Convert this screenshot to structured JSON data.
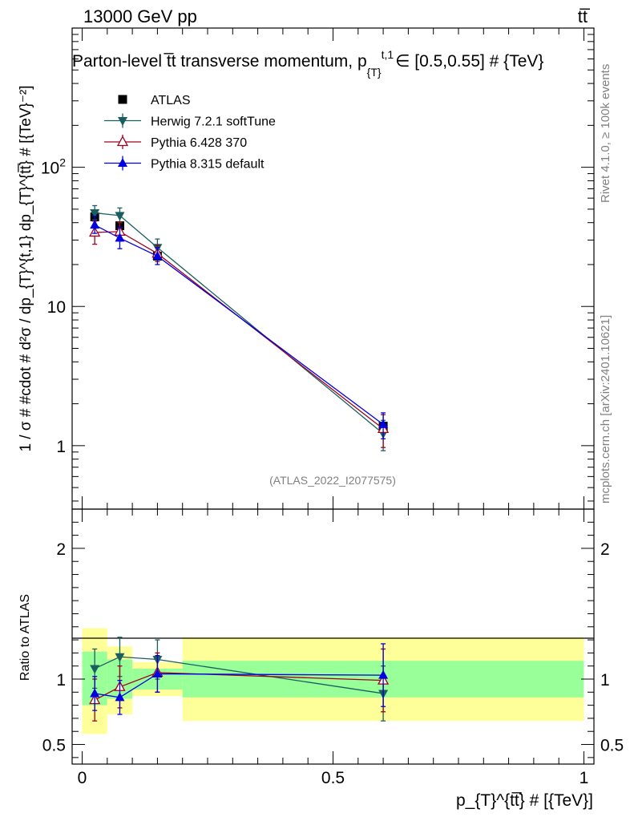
{
  "header": {
    "energy_label": "13000 GeV pp",
    "process_label": "tt̅",
    "plot_title": "Parton-level t̅t transverse momentum, p",
    "title_sub": "{T}",
    "title_sup": "t,1",
    "title_tail": "∈ [0.5,0.55] # {TeV}"
  },
  "side_labels": {
    "rivet": "Rivet 4.1.0, ≥ 100k events",
    "mcplots": "mcplots.cern.ch [arXiv:2401.10621]"
  },
  "watermark": "(ATLAS_2022_I2077575)",
  "chart_data": [
    {
      "type": "scatter",
      "panel": "main",
      "yscale": "log",
      "ylabel": "1 / σ # #cdot # d²σ / dp_{T}^{t,1} dp_{T}^{tt̅} # [{TeV}⁻²]",
      "xlim": [
        -0.02,
        1.02
      ],
      "ylim": [
        0.35,
        1000
      ],
      "y_ticks": [
        {
          "value": 1,
          "label": "1"
        },
        {
          "value": 10,
          "label": "10"
        },
        {
          "value": 100,
          "label": "10²"
        }
      ],
      "legend_position": "top-left",
      "series": [
        {
          "name": "ATLAS",
          "color": "#000000",
          "marker": "square",
          "x": [
            0.025,
            0.075,
            0.15,
            0.6
          ],
          "xerr": [
            0.025,
            0.025,
            0.05,
            0.4
          ],
          "y": [
            44,
            38,
            23,
            1.38
          ],
          "yerr_lo": [
            0,
            0,
            0,
            0
          ],
          "yerr_hi": [
            0,
            0,
            0,
            0
          ]
        },
        {
          "name": "Herwig 7.2.1 softTune",
          "color": "#1a5f5f",
          "marker": "triangle-down",
          "x": [
            0.025,
            0.075,
            0.15,
            0.6
          ],
          "y": [
            47,
            45,
            26.5,
            1.22
          ],
          "yerr_lo": [
            5,
            5,
            3.5,
            0.3
          ],
          "yerr_hi": [
            6,
            6,
            4,
            0.3
          ]
        },
        {
          "name": "Pythia 6.428 370",
          "color": "#a0001e",
          "marker": "triangle-up-open",
          "x": [
            0.025,
            0.075,
            0.15,
            0.6
          ],
          "y": [
            34,
            34.5,
            24,
            1.32
          ],
          "yerr_lo": [
            6,
            5,
            3,
            0.35
          ],
          "yerr_hi": [
            7,
            6,
            3.5,
            0.35
          ]
        },
        {
          "name": "Pythia 8.315 default",
          "color": "#0000e0",
          "marker": "triangle-up",
          "x": [
            0.025,
            0.075,
            0.15,
            0.6
          ],
          "y": [
            38.5,
            31,
            23,
            1.42
          ],
          "yerr_lo": [
            5,
            5,
            3,
            0.3
          ],
          "yerr_hi": [
            6,
            6,
            3.5,
            0.3
          ]
        }
      ]
    },
    {
      "type": "scatter",
      "panel": "ratio",
      "ylabel": "Ratio to ATLAS",
      "xlabel": "p_{T}^{tt̅} # [{TeV}]",
      "xlim": [
        -0.02,
        1.02
      ],
      "ylim": [
        0.35,
        2.3
      ],
      "y_ticks": [
        {
          "value": 0.5,
          "label": "0.5"
        },
        {
          "value": 1,
          "label": "1"
        },
        {
          "value": 2,
          "label": "2"
        }
      ],
      "x_ticks": [
        {
          "value": 0,
          "label": "0"
        },
        {
          "value": 0.5,
          "label": "0.5"
        },
        {
          "value": 1,
          "label": "1"
        }
      ],
      "bands": [
        {
          "x0": 0.0,
          "x1": 0.05,
          "stat_lo": 0.8,
          "stat_hi": 1.21,
          "tot_lo": 0.58,
          "tot_hi": 1.39
        },
        {
          "x0": 0.05,
          "x1": 0.1,
          "stat_lo": 0.85,
          "stat_hi": 1.15,
          "tot_lo": 0.73,
          "tot_hi": 1.25
        },
        {
          "x0": 0.1,
          "x1": 0.2,
          "stat_lo": 0.92,
          "stat_hi": 1.08,
          "tot_lo": 0.87,
          "tot_hi": 1.13
        },
        {
          "x0": 0.2,
          "x1": 1.0,
          "stat_lo": 0.86,
          "stat_hi": 1.14,
          "tot_lo": 0.68,
          "tot_hi": 1.32
        }
      ],
      "series": [
        {
          "name": "Herwig 7.2.1 softTune",
          "color": "#1a5f5f",
          "marker": "triangle-down",
          "x": [
            0.025,
            0.075,
            0.15,
            0.6
          ],
          "y": [
            1.08,
            1.17,
            1.15,
            0.89
          ],
          "yerr_lo": [
            0.15,
            0.15,
            0.15,
            0.21
          ],
          "yerr_hi": [
            0.15,
            0.15,
            0.15,
            0.21
          ]
        },
        {
          "name": "Pythia 6.428 370",
          "color": "#a0001e",
          "marker": "triangle-up-open",
          "x": [
            0.025,
            0.075,
            0.15,
            0.6
          ],
          "y": [
            0.84,
            0.94,
            1.05,
            0.99
          ],
          "yerr_lo": [
            0.16,
            0.16,
            0.15,
            0.24
          ],
          "yerr_hi": [
            0.16,
            0.16,
            0.15,
            0.24
          ]
        },
        {
          "name": "Pythia 8.315 default",
          "color": "#0000e0",
          "marker": "triangle-up",
          "x": [
            0.025,
            0.075,
            0.15,
            0.6
          ],
          "y": [
            0.89,
            0.86,
            1.04,
            1.03
          ],
          "yerr_lo": [
            0.13,
            0.13,
            0.14,
            0.24
          ],
          "yerr_hi": [
            0.13,
            0.13,
            0.14,
            0.24
          ]
        }
      ]
    }
  ]
}
